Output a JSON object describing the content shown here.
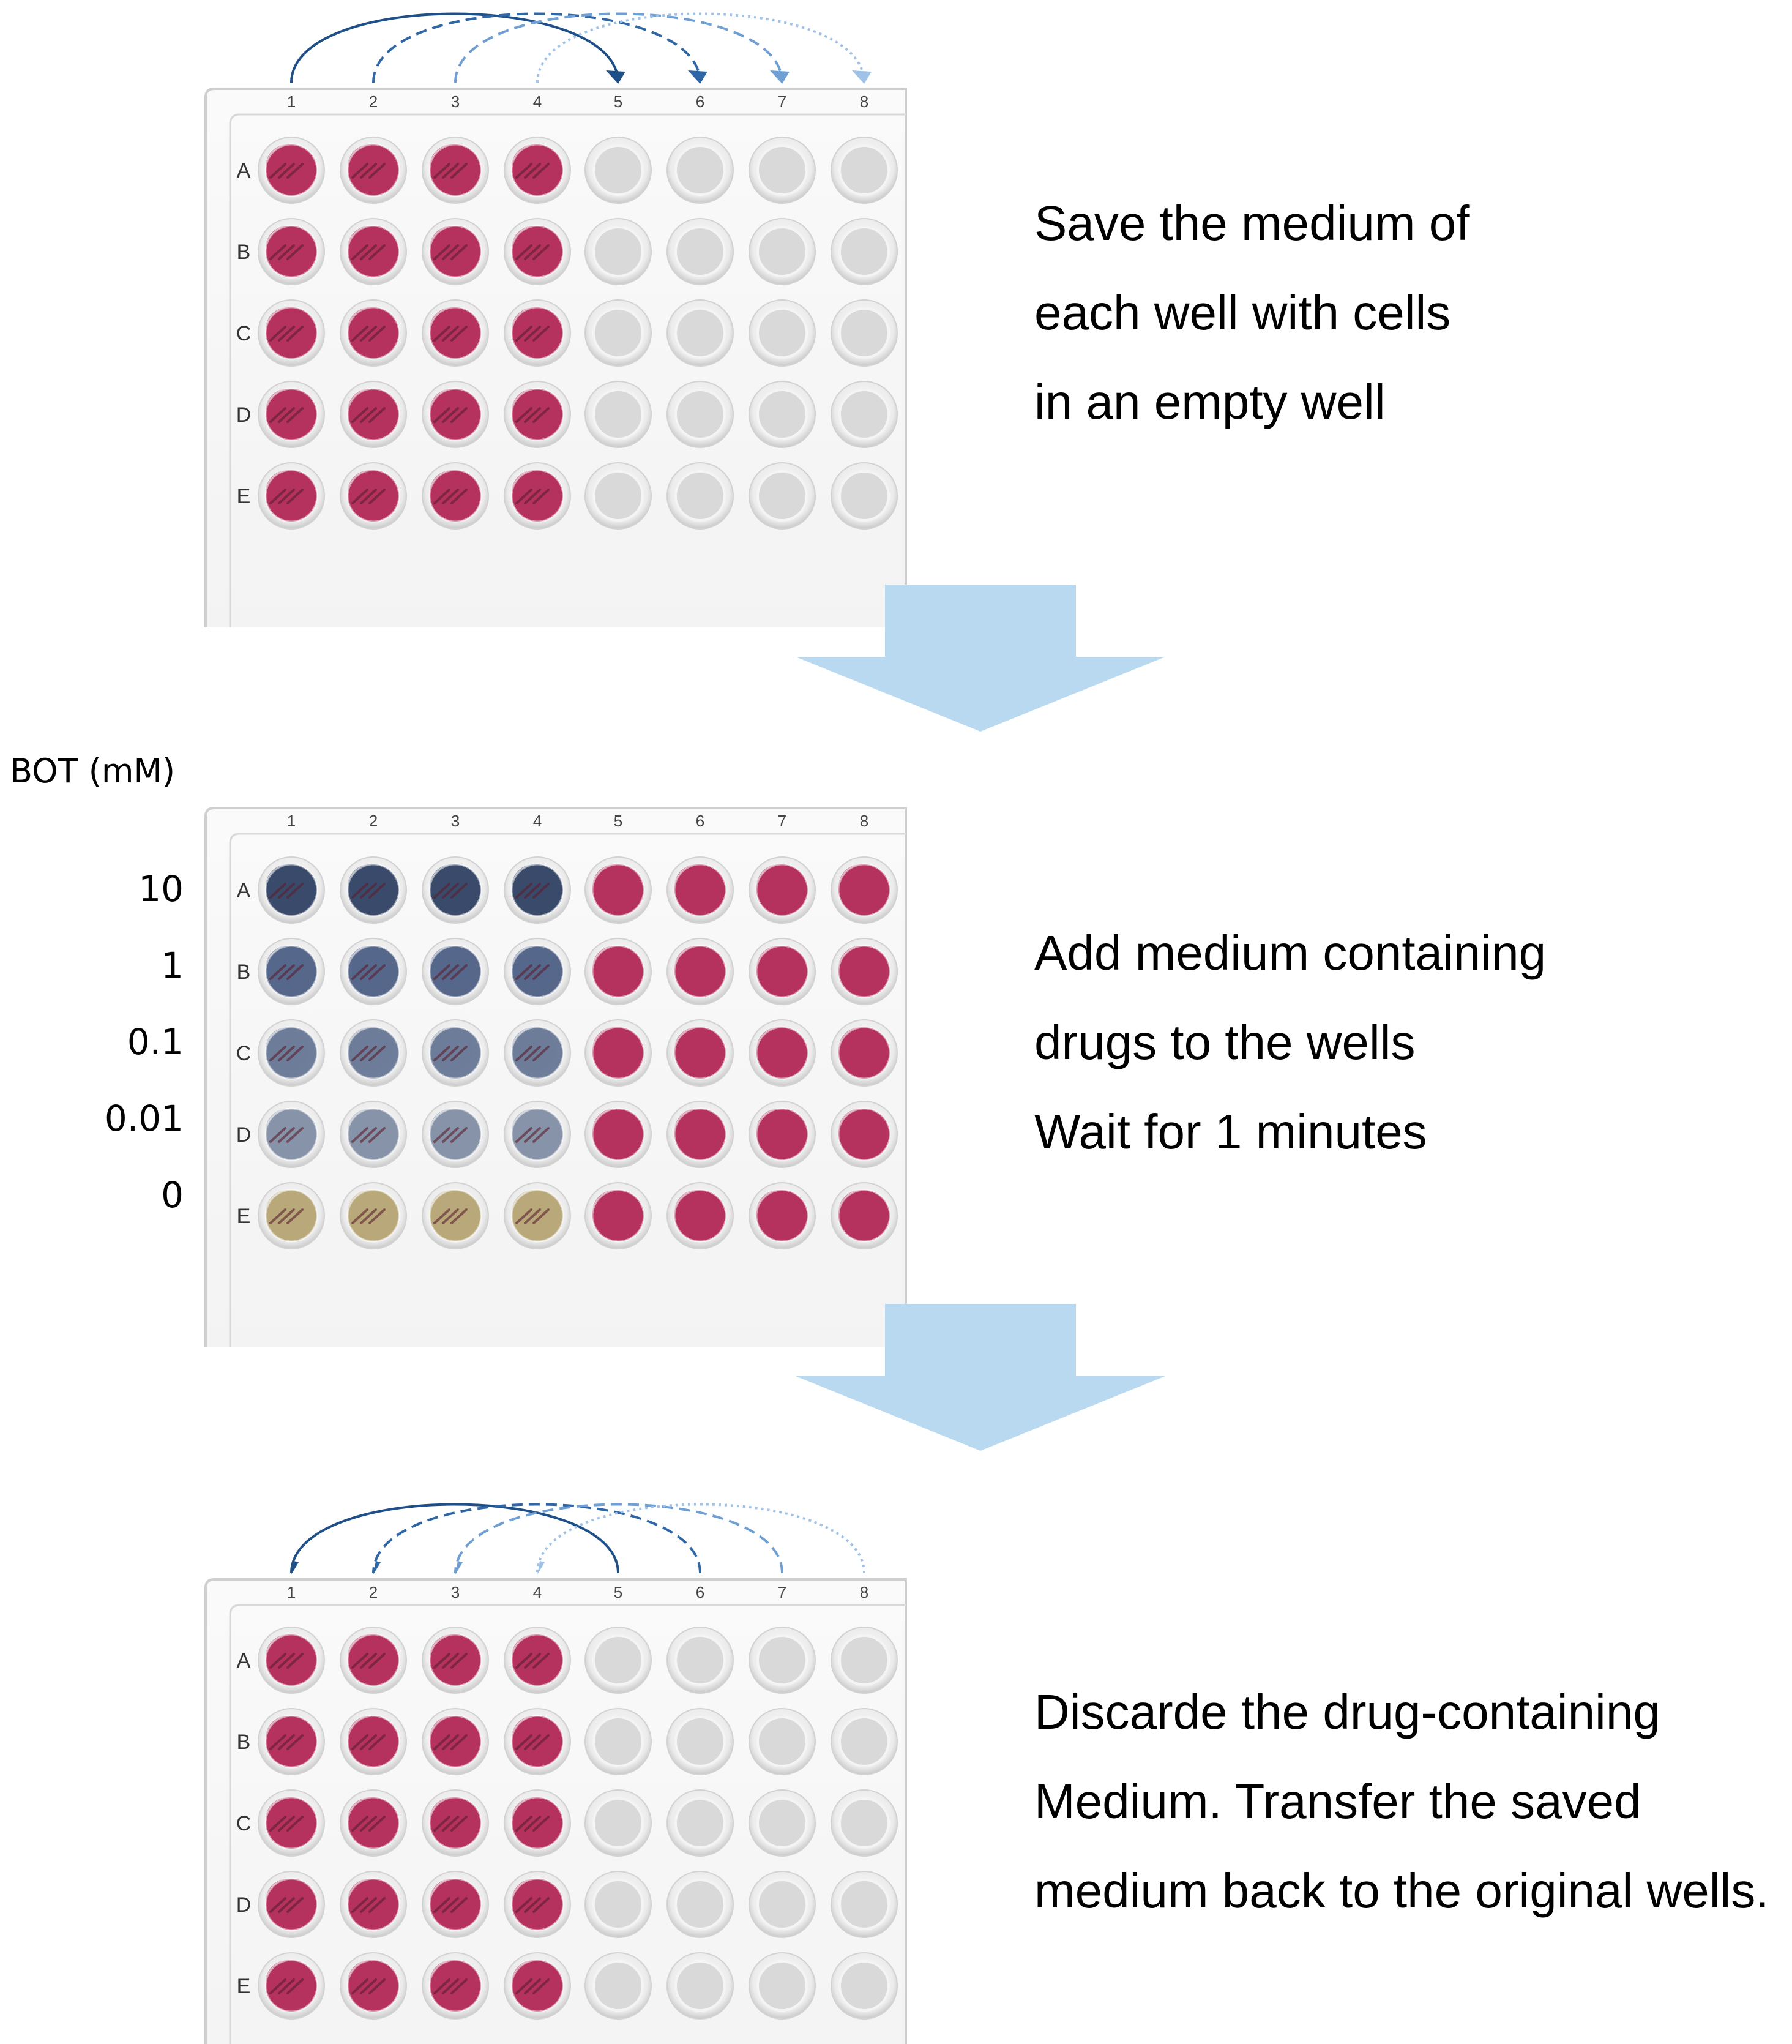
{
  "columns": [
    "1",
    "2",
    "3",
    "4",
    "5",
    "6",
    "7",
    "8"
  ],
  "rows": [
    "A",
    "B",
    "C",
    "D",
    "E"
  ],
  "colors": {
    "medium_pink": "#b5325e",
    "empty_well": "#d9d9d9",
    "arrow_fill": "#b9d9f1",
    "drug_10": "#3a4a6b",
    "drug_1": "#56678a",
    "drug_0_1": "#6e7d99",
    "drug_0_01": "#8793a8",
    "drug_0": "#b8a87a",
    "transfer_arrow_1": "#1f4f87",
    "transfer_arrow_2": "#2e66a6",
    "transfer_arrow_3": "#6f9fd3",
    "transfer_arrow_4": "#9fc2e6"
  },
  "steps": [
    {
      "lines": [
        "Save the medium of",
        "each well with cells",
        "in an empty well"
      ],
      "transfers": [
        {
          "from": "1",
          "to": "5",
          "style": "solid"
        },
        {
          "from": "2",
          "to": "6",
          "style": "dashed"
        },
        {
          "from": "3",
          "to": "7",
          "style": "dashed"
        },
        {
          "from": "4",
          "to": "8",
          "style": "dotted"
        }
      ]
    },
    {
      "lines": [
        "Add medium containing",
        "drugs to the wells",
        "Wait for 1 minutes"
      ],
      "concentration_title": "BOT (mM)",
      "concentrations": [
        "10",
        "1",
        "0.1",
        "0.01",
        "0"
      ]
    },
    {
      "lines": [
        "Discarde the drug-containing",
        "Medium. Transfer the saved",
        "medium back to the original wells."
      ],
      "transfers": [
        {
          "from": "5",
          "to": "1",
          "style": "solid"
        },
        {
          "from": "6",
          "to": "2",
          "style": "dashed"
        },
        {
          "from": "7",
          "to": "3",
          "style": "dashed"
        },
        {
          "from": "8",
          "to": "4",
          "style": "dotted"
        }
      ]
    }
  ]
}
